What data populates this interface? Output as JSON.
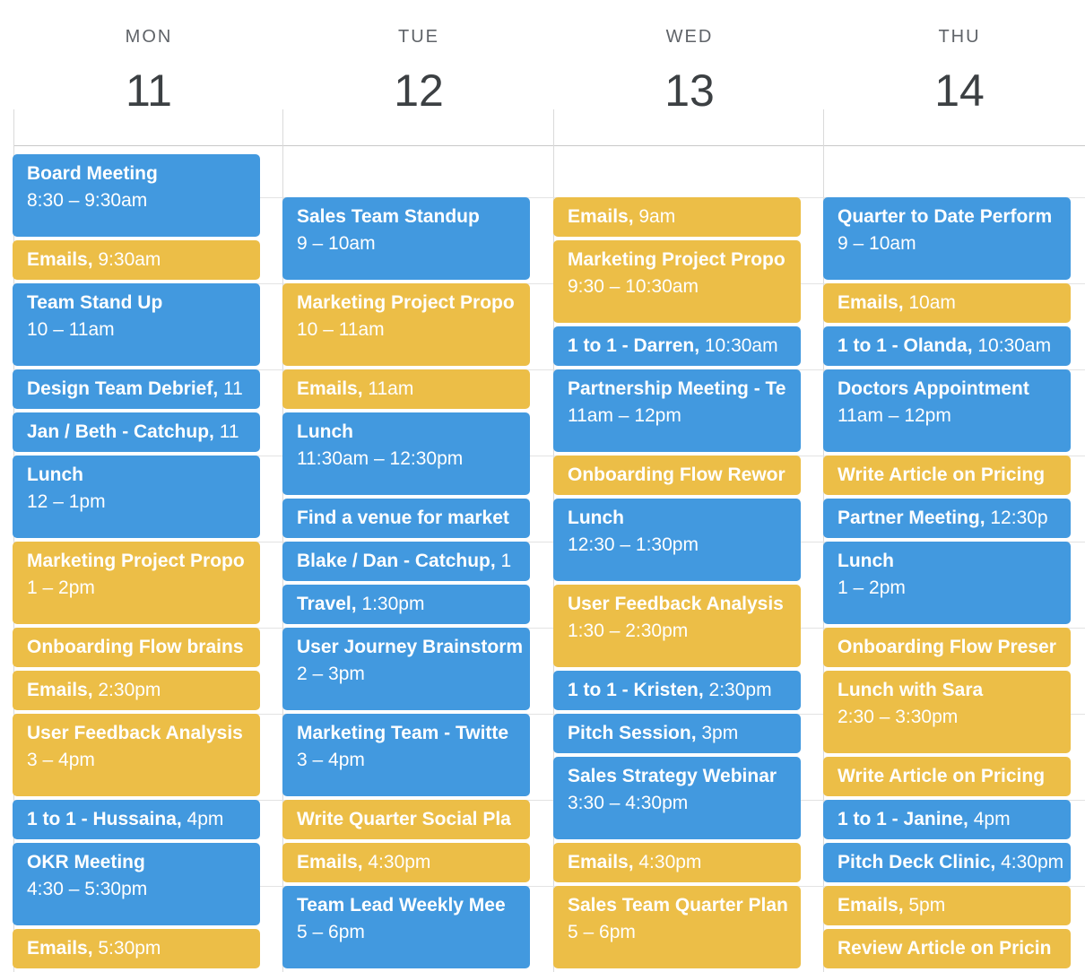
{
  "colors": {
    "blue": "#4299df",
    "yellow": "#ecbe47"
  },
  "days": [
    {
      "dow": "MON",
      "date": "11",
      "events": [
        {
          "title": "Board Meeting",
          "time": "8:30 – 9:30am",
          "layout": "two",
          "color": "blue"
        },
        {
          "title": "Emails",
          "time": "9:30am",
          "layout": "inline",
          "color": "yellow"
        },
        {
          "title": "Team Stand Up",
          "time": "10 – 11am",
          "layout": "two",
          "color": "blue"
        },
        {
          "title": "Design Team Debrief",
          "time": "11",
          "layout": "inline",
          "color": "blue"
        },
        {
          "title": "Jan / Beth - Catchup",
          "time": "11",
          "layout": "inline",
          "color": "blue"
        },
        {
          "title": "Lunch",
          "time": "12 – 1pm",
          "layout": "two",
          "color": "blue"
        },
        {
          "title": "Marketing Project Propo",
          "time": "1 – 2pm",
          "layout": "two",
          "color": "yellow"
        },
        {
          "title": "Onboarding Flow brains",
          "time": "",
          "layout": "inline",
          "color": "yellow"
        },
        {
          "title": "Emails",
          "time": "2:30pm",
          "layout": "inline",
          "color": "yellow"
        },
        {
          "title": "User Feedback Analysis",
          "time": "3 – 4pm",
          "layout": "two",
          "color": "yellow"
        },
        {
          "title": "1 to 1 - Hussaina",
          "time": "4pm",
          "layout": "inline",
          "color": "blue"
        },
        {
          "title": "OKR Meeting",
          "time": "4:30 – 5:30pm",
          "layout": "two",
          "color": "blue"
        },
        {
          "title": "Emails",
          "time": "5:30pm",
          "layout": "inline",
          "color": "yellow"
        }
      ]
    },
    {
      "dow": "TUE",
      "date": "12",
      "events": [
        {
          "title": "Sales Team Standup",
          "time": "9 – 10am",
          "layout": "two",
          "color": "blue"
        },
        {
          "title": "Marketing Project Propo",
          "time": "10 – 11am",
          "layout": "two",
          "color": "yellow"
        },
        {
          "title": "Emails",
          "time": "11am",
          "layout": "inline",
          "color": "yellow"
        },
        {
          "title": "Lunch",
          "time": "11:30am – 12:30pm",
          "layout": "two",
          "color": "blue"
        },
        {
          "title": "Find a venue for market",
          "time": "",
          "layout": "inline",
          "color": "blue"
        },
        {
          "title": "Blake / Dan - Catchup",
          "time": "1",
          "layout": "inline",
          "color": "blue"
        },
        {
          "title": "Travel",
          "time": "1:30pm",
          "layout": "inline",
          "color": "blue"
        },
        {
          "title": "User Journey Brainstorm",
          "time": "2 – 3pm",
          "layout": "two",
          "color": "blue"
        },
        {
          "title": "Marketing Team - Twitte",
          "time": "3 – 4pm",
          "layout": "two",
          "color": "blue"
        },
        {
          "title": "Write Quarter Social Pla",
          "time": "",
          "layout": "inline",
          "color": "yellow"
        },
        {
          "title": "Emails",
          "time": "4:30pm",
          "layout": "inline",
          "color": "yellow"
        },
        {
          "title": "Team Lead Weekly Mee",
          "time": "5 – 6pm",
          "layout": "two",
          "color": "blue"
        }
      ]
    },
    {
      "dow": "WED",
      "date": "13",
      "events": [
        {
          "title": "Emails",
          "time": "9am",
          "layout": "inline",
          "color": "yellow"
        },
        {
          "title": "Marketing Project Propo",
          "time": "9:30 – 10:30am",
          "layout": "two",
          "color": "yellow"
        },
        {
          "title": "1 to 1 - Darren",
          "time": "10:30am",
          "layout": "inline",
          "color": "blue"
        },
        {
          "title": "Partnership Meeting - Te",
          "time": "11am – 12pm",
          "layout": "two",
          "color": "blue"
        },
        {
          "title": "Onboarding Flow Rewor",
          "time": "",
          "layout": "inline",
          "color": "yellow"
        },
        {
          "title": "Lunch",
          "time": "12:30 – 1:30pm",
          "layout": "two",
          "color": "blue"
        },
        {
          "title": "User Feedback Analysis",
          "time": "1:30 – 2:30pm",
          "layout": "two",
          "color": "yellow"
        },
        {
          "title": "1 to 1 - Kristen",
          "time": "2:30pm",
          "layout": "inline",
          "color": "blue"
        },
        {
          "title": "Pitch Session",
          "time": "3pm",
          "layout": "inline",
          "color": "blue"
        },
        {
          "title": "Sales Strategy Webinar",
          "time": "3:30 – 4:30pm",
          "layout": "two",
          "color": "blue"
        },
        {
          "title": "Emails",
          "time": "4:30pm",
          "layout": "inline",
          "color": "yellow"
        },
        {
          "title": "Sales Team Quarter Plan",
          "time": "5 – 6pm",
          "layout": "two",
          "color": "yellow"
        }
      ]
    },
    {
      "dow": "THU",
      "date": "14",
      "events": [
        {
          "title": "Quarter to Date Perform",
          "time": "9 – 10am",
          "layout": "two",
          "color": "blue"
        },
        {
          "title": "Emails",
          "time": "10am",
          "layout": "inline",
          "color": "yellow"
        },
        {
          "title": "1 to 1 - Olanda",
          "time": "10:30am",
          "layout": "inline",
          "color": "blue"
        },
        {
          "title": "Doctors Appointment",
          "time": "11am – 12pm",
          "layout": "two",
          "color": "blue"
        },
        {
          "title": "Write Article on Pricing",
          "time": "",
          "layout": "inline",
          "color": "yellow"
        },
        {
          "title": "Partner Meeting",
          "time": "12:30p",
          "layout": "inline",
          "color": "blue"
        },
        {
          "title": "Lunch",
          "time": "1 – 2pm",
          "layout": "two",
          "color": "blue"
        },
        {
          "title": "Onboarding Flow Preser",
          "time": "",
          "layout": "inline",
          "color": "yellow"
        },
        {
          "title": "Lunch with Sara",
          "time": "2:30 – 3:30pm",
          "layout": "two",
          "color": "yellow"
        },
        {
          "title": "Write Article on Pricing",
          "time": "",
          "layout": "inline",
          "color": "yellow"
        },
        {
          "title": "1 to 1 - Janine",
          "time": "4pm",
          "layout": "inline",
          "color": "blue"
        },
        {
          "title": "Pitch Deck Clinic",
          "time": "4:30pm",
          "layout": "inline",
          "color": "blue"
        },
        {
          "title": "Emails",
          "time": "5pm",
          "layout": "inline",
          "color": "yellow"
        },
        {
          "title": "Review Article on Pricin",
          "time": "",
          "layout": "inline",
          "color": "yellow"
        }
      ]
    }
  ]
}
